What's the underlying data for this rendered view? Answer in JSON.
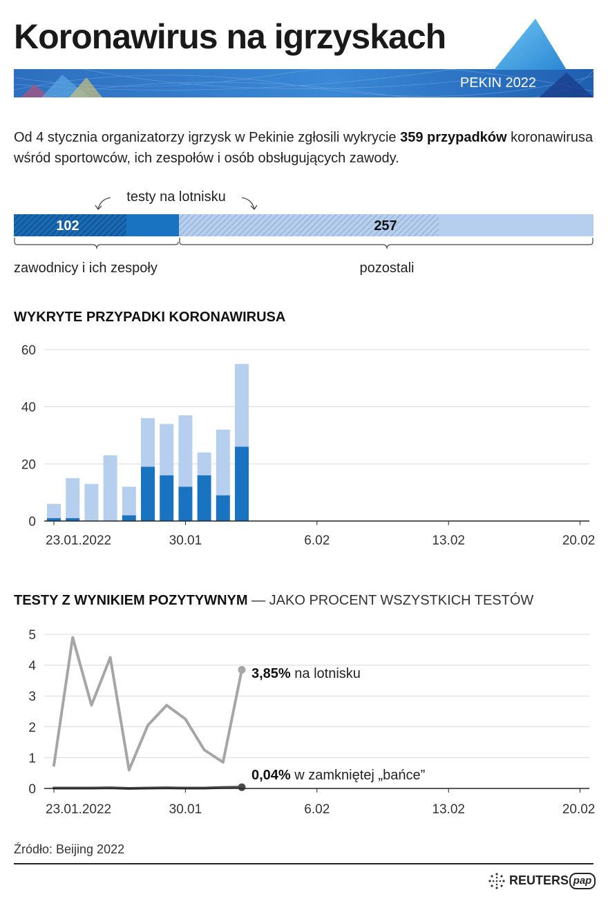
{
  "header": {
    "title": "Koronawirus na igrzyskach",
    "badge": "PEKIN 2022"
  },
  "intro": {
    "text_before": "Od 4 stycznia organizatorzy igrzysk w Pekinie zgłosili wykrycie ",
    "highlight": "359 przypadków",
    "text_after": " koronawirusa wśród sportowców, ich zespołów i osób obsługujących zawody."
  },
  "breakdown": {
    "airport_label": "testy na lotnisku",
    "athletes_value": "102",
    "others_value": "257",
    "athletes_label": "zawodnicy i ich zespoły",
    "others_label": "pozostali"
  },
  "section1": {
    "title": "WYKRYTE PRZYPADKI KORONAWIRUSA"
  },
  "section2": {
    "title_bold": "TESTY Z WYNIKIEM POZYTYWNYM",
    "title_rest": " — JAKO PROCENT WSZYSTKICH TESTÓW",
    "airport_value": "3,85%",
    "airport_text": " na lotnisku",
    "bubble_value": "0,04%",
    "bubble_text": " w zamkniętej „bańce”"
  },
  "footer": {
    "source": "Źródło: Beijing 2022",
    "reuters": "REUTERS",
    "pap": "pap"
  },
  "colors": {
    "dark_blue": "#1a73c0",
    "light_blue": "#b7cfee",
    "grey_line": "#a6a6a6",
    "dark_line": "#4a4a4a"
  },
  "chart_data": [
    {
      "type": "bar",
      "title": "WYKRYTE PRZYPADKI KORONAWIRUSA",
      "x_tick_labels": [
        "23.01.2022",
        "30.01",
        "6.02",
        "13.02",
        "20.02"
      ],
      "categories": [
        "23.01",
        "24.01",
        "25.01",
        "26.01",
        "27.01",
        "28.01",
        "29.01",
        "30.01",
        "31.01",
        "01.02",
        "02.02"
      ],
      "series": [
        {
          "values": [
            1,
            1,
            0,
            0,
            2,
            19,
            16,
            12,
            16,
            9,
            26
          ]
        },
        {
          "values": [
            5,
            14,
            13,
            23,
            10,
            17,
            18,
            25,
            8,
            23,
            29
          ]
        }
      ],
      "stacked": true,
      "ylim": [
        0,
        60
      ],
      "yticks": [
        0,
        20,
        40,
        60
      ],
      "grid": true
    },
    {
      "type": "line",
      "title": "TESTY Z WYNIKIEM POZYTYWNYM — JAKO PROCENT WSZYSTKICH TESTÓW",
      "x_tick_labels": [
        "23.01.2022",
        "30.01",
        "6.02",
        "13.02",
        "20.02"
      ],
      "x": [
        "23.01",
        "24.01",
        "25.01",
        "26.01",
        "27.01",
        "28.01",
        "29.01",
        "30.01",
        "31.01",
        "01.02",
        "02.02"
      ],
      "series": [
        {
          "name": "na lotnisku",
          "values": [
            0.75,
            4.9,
            2.7,
            4.25,
            0.6,
            2.05,
            2.7,
            2.25,
            1.25,
            0.85,
            3.85
          ]
        },
        {
          "name": "w zamkniętej „bańce”",
          "values": [
            0.01,
            0.01,
            0.01,
            0.02,
            0.0,
            0.01,
            0.02,
            0.01,
            0.01,
            0.03,
            0.04
          ]
        }
      ],
      "ylim": [
        0,
        5
      ],
      "yticks": [
        0,
        1,
        2,
        3,
        4,
        5
      ],
      "grid": true
    }
  ]
}
